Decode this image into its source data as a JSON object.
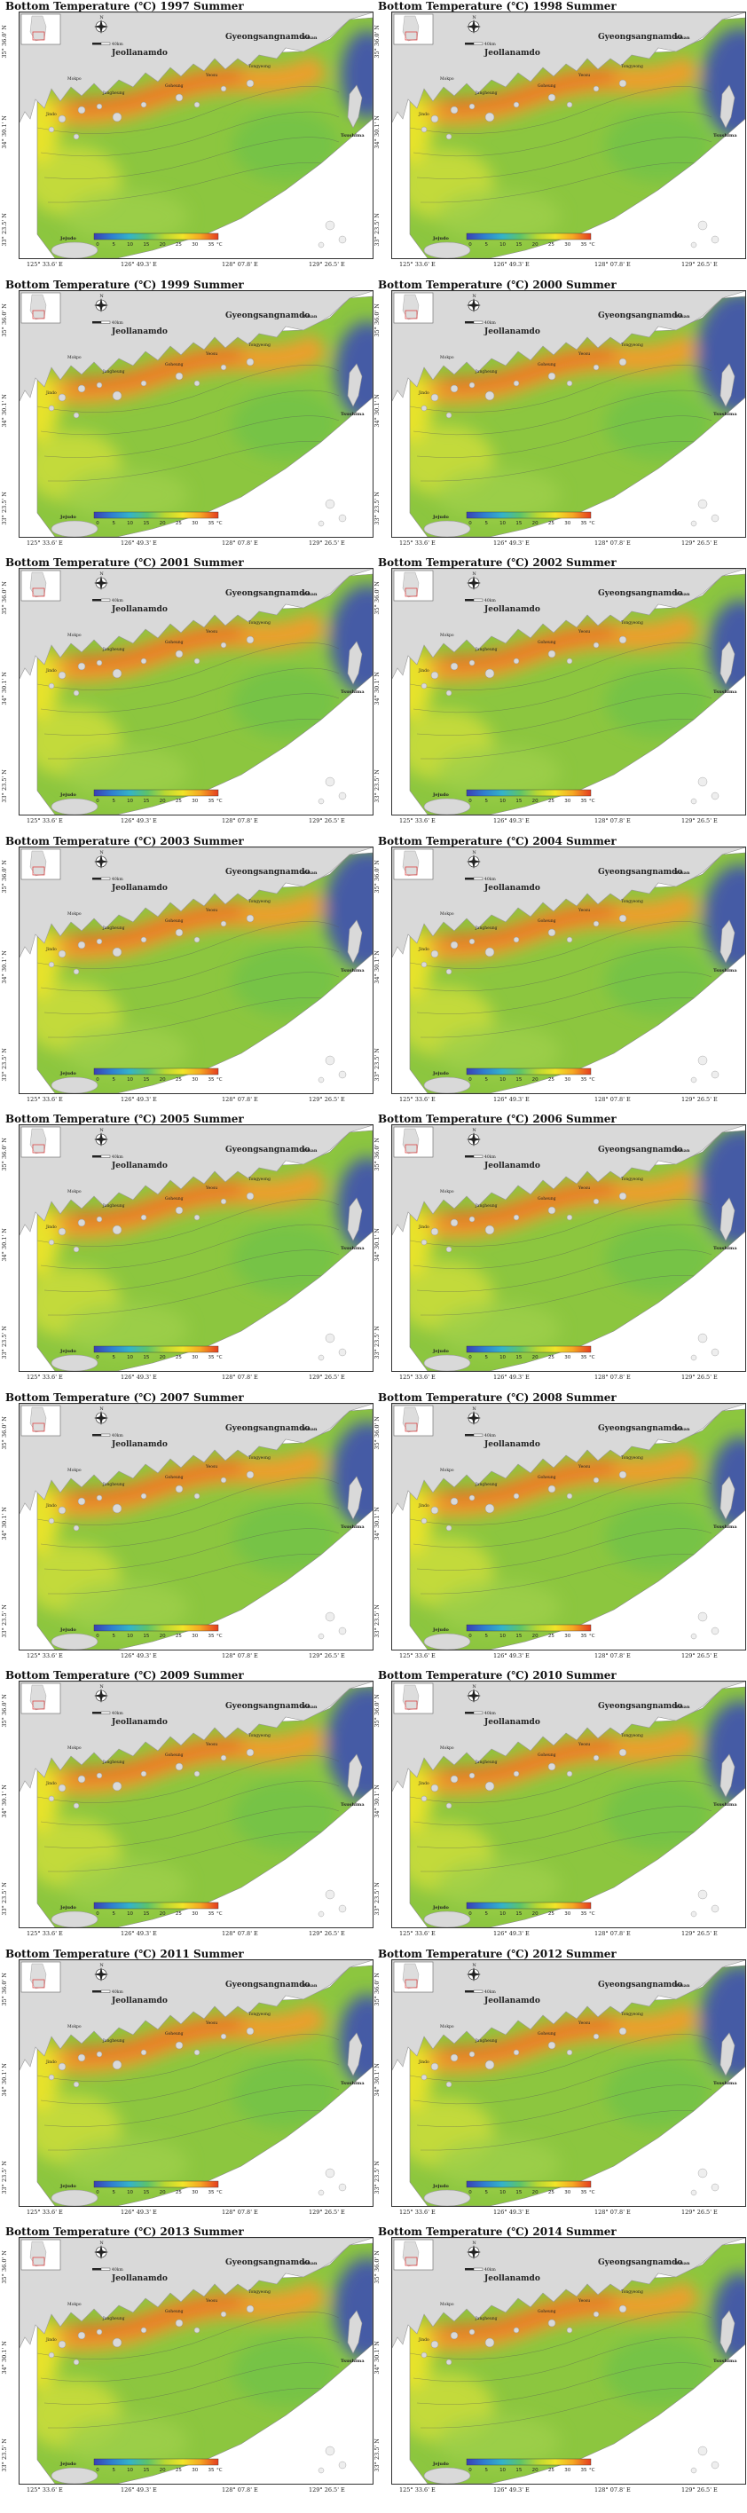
{
  "title_template": "Bottom Temperature (℃) {year} Summer",
  "years": [
    "1997",
    "1998",
    "1999",
    "2000",
    "2001",
    "2002",
    "2003",
    "2004",
    "2005",
    "2006",
    "2007",
    "2008",
    "2009",
    "2010",
    "2011",
    "2012",
    "2013",
    "2014"
  ],
  "labels": {
    "latitudes": [
      "35° 36.0' N",
      "34° 30.1' N",
      "33° 23.5' N"
    ],
    "longitudes": [
      "125° 33.6' E",
      "126° 49.3' E",
      "128° 07.8' E",
      "129° 26.5' E"
    ],
    "places": {
      "province_north_east": "Gyeongsangnamdo",
      "province_west": "Jeollanamdo",
      "busan": "Busan",
      "tsushima": "Tsushima",
      "jejudo": "Jejudo",
      "mokpo": "Mokpo",
      "jangheung": "Jangheung",
      "jindo": "Jindo",
      "goheung": "Goheung",
      "yeosu": "Yeosu",
      "tongyeong": "Tongyeong"
    },
    "scale_unit": "40km",
    "compass": "N"
  },
  "colorbar": {
    "ticks": [
      "0",
      "5",
      "10",
      "15",
      "20",
      "25",
      "30",
      "35"
    ],
    "unit": "°C",
    "colors": [
      "#3a3fb5",
      "#2f7fd0",
      "#34b3c9",
      "#5cc36b",
      "#b8d832",
      "#f1e528",
      "#f5a623",
      "#e53d1f"
    ]
  },
  "colors": {
    "land": "#d9d9d9",
    "sea_base": "#8cc63f",
    "coastal_warm": "#f39c2a",
    "coastal_hot": "#e8571e",
    "cold_east": "#3d4fb0"
  }
}
